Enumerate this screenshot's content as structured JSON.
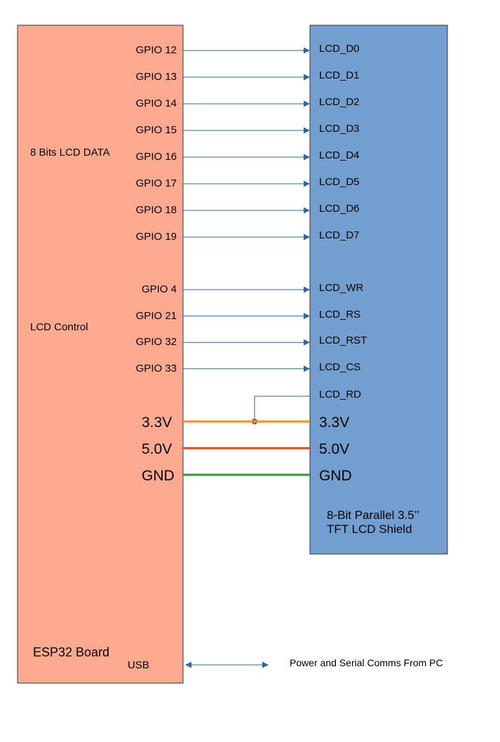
{
  "colors": {
    "esp32_fill": "#fdaa91",
    "lcd_fill": "#729fcf",
    "signal_line": "#3465a4",
    "v33_line": "#ff8c1a",
    "v50_line": "#ee4411",
    "gnd_line": "#2e9b33"
  },
  "esp32": {
    "title": "ESP32 Board",
    "group_data": "8 Bits LCD DATA",
    "group_control": "LCD Control",
    "usb": "USB"
  },
  "lcd": {
    "title_line1": "8-Bit Parallel 3.5’’",
    "title_line2": "TFT LCD Shield"
  },
  "data_pins": [
    {
      "gpio": "GPIO 12",
      "lcd": "LCD_D0"
    },
    {
      "gpio": "GPIO 13",
      "lcd": "LCD_D1"
    },
    {
      "gpio": "GPIO 14",
      "lcd": "LCD_D2"
    },
    {
      "gpio": "GPIO 15",
      "lcd": "LCD_D3"
    },
    {
      "gpio": "GPIO 16",
      "lcd": "LCD_D4"
    },
    {
      "gpio": "GPIO 17",
      "lcd": "LCD_D5"
    },
    {
      "gpio": "GPIO 18",
      "lcd": "LCD_D6"
    },
    {
      "gpio": "GPIO 19",
      "lcd": "LCD_D7"
    }
  ],
  "control_pins": [
    {
      "gpio": "GPIO 4",
      "lcd": "LCD_WR"
    },
    {
      "gpio": "GPIO 21",
      "lcd": "LCD_RS"
    },
    {
      "gpio": "GPIO 32",
      "lcd": "LCD_RST"
    },
    {
      "gpio": "GPIO 33",
      "lcd": "LCD_CS"
    }
  ],
  "rd_pin": "LCD_RD",
  "power": [
    {
      "left": "3.3V",
      "right": "3.3V"
    },
    {
      "left": "5.0V",
      "right": "5.0V"
    },
    {
      "left": "GND",
      "right": "GND"
    }
  ],
  "usb_link": "Power and Serial Comms From PC"
}
